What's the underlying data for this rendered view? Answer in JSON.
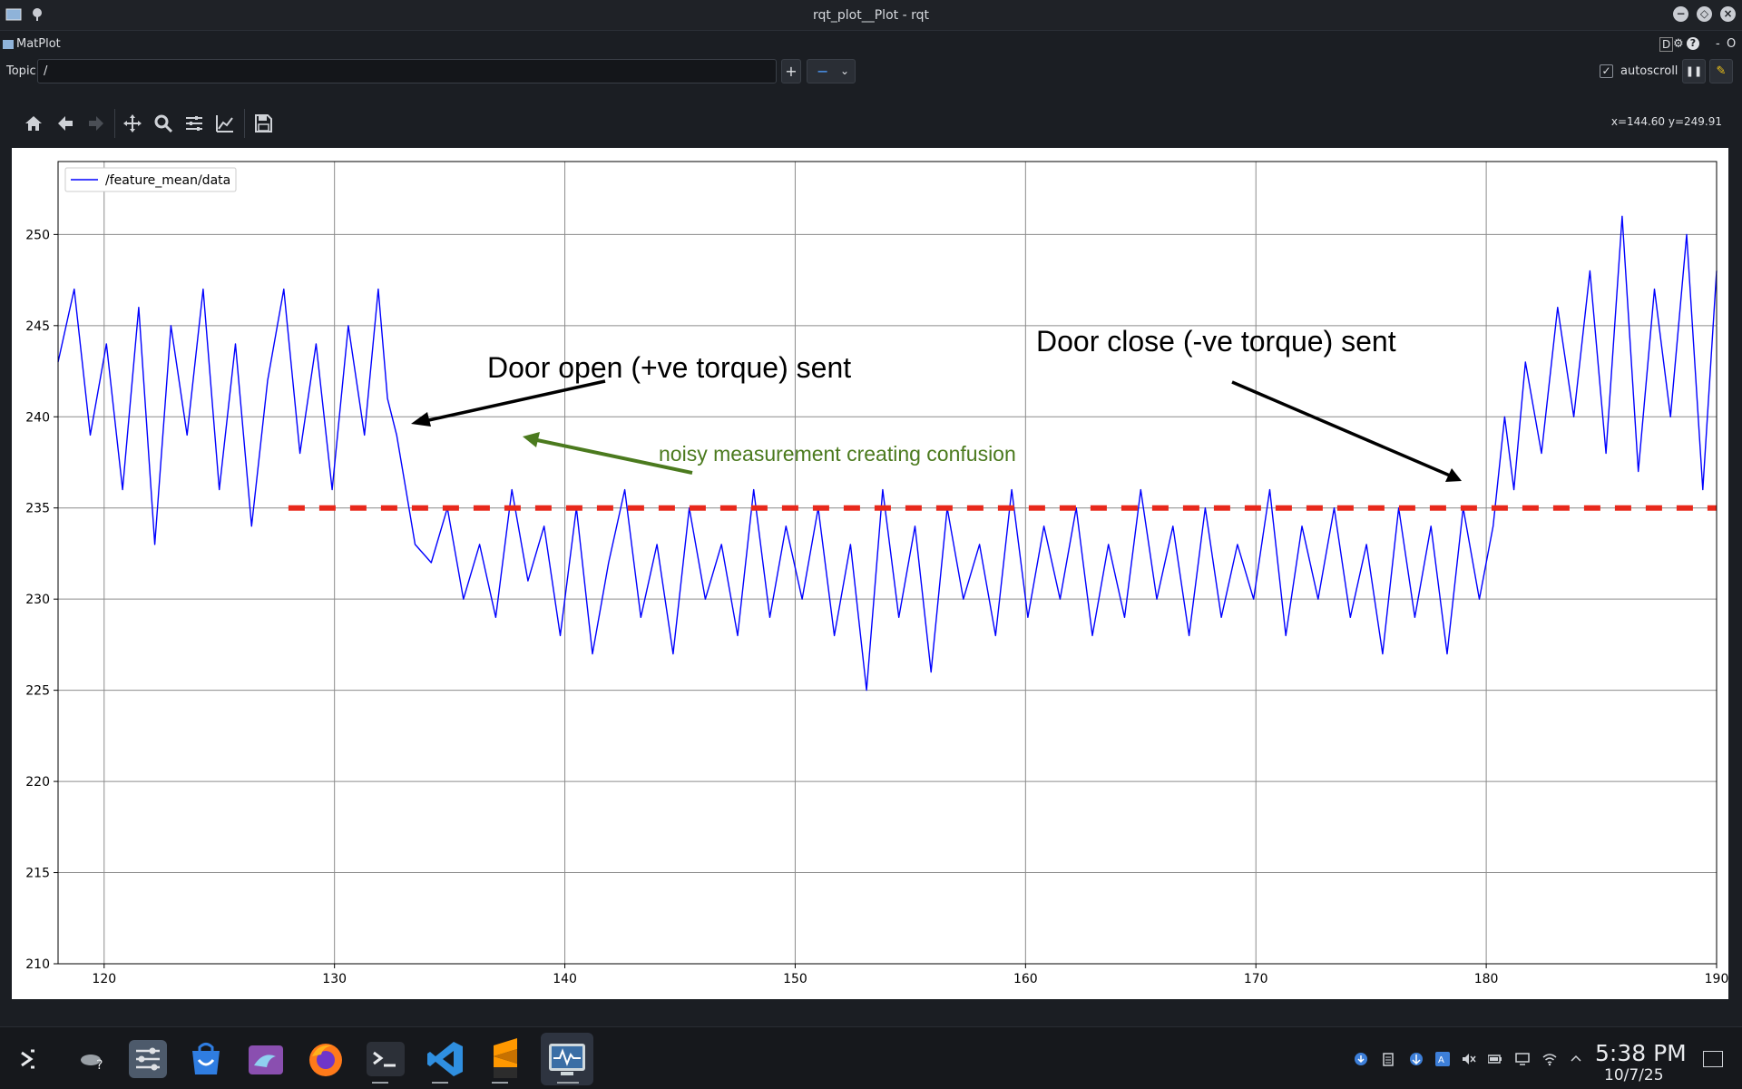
{
  "window": {
    "title": "rqt_plot__Plot - rqt",
    "plugin_name": "MatPlot",
    "plugin_tools": [
      "D",
      "gear",
      "help",
      "-",
      "O"
    ]
  },
  "topic_bar": {
    "label": "Topic",
    "value": "/",
    "add_label": "+",
    "remove_label": "−",
    "autoscroll_label": "autoscroll",
    "autoscroll_checked": true
  },
  "toolbar": {
    "tools": [
      "home-icon",
      "back-arrow-icon",
      "forward-arrow-icon",
      "pan-icon",
      "zoom-icon",
      "subplots-config-icon",
      "axes-edit-icon",
      "save-icon"
    ],
    "coordinates": "x=144.60 y=249.91"
  },
  "annotations": {
    "door_open": "Door open (+ve torque) sent",
    "door_close": "Door close (-ve torque) sent",
    "noisy": "noisy measurement creating confusion"
  },
  "chart_data": {
    "type": "line",
    "legend_position": "top-left",
    "grid": true,
    "xlim": [
      118,
      190
    ],
    "ylim": [
      210,
      254
    ],
    "x_ticks": [
      120,
      130,
      140,
      150,
      160,
      170,
      180,
      190
    ],
    "y_ticks": [
      210,
      215,
      220,
      225,
      230,
      235,
      240,
      245,
      250
    ],
    "series": [
      {
        "name": "/feature_mean/data",
        "color": "#0000ff",
        "x": [
          118,
          118.7,
          119.4,
          120.1,
          120.8,
          121.5,
          122.2,
          122.9,
          123.6,
          124.3,
          125,
          125.7,
          126.4,
          127.1,
          127.8,
          128.5,
          129.2,
          129.9,
          130.6,
          131.3,
          131.9,
          132.3,
          132.7,
          133.1,
          133.5,
          134.2,
          134.9,
          135.6,
          136.3,
          137,
          137.7,
          138.4,
          139.1,
          139.8,
          140.5,
          141.2,
          141.9,
          142.6,
          143.3,
          144,
          144.7,
          145.4,
          146.1,
          146.8,
          147.5,
          148.2,
          148.9,
          149.6,
          150.3,
          151,
          151.7,
          152.4,
          153.1,
          153.8,
          154.5,
          155.2,
          155.9,
          156.6,
          157.3,
          158,
          158.7,
          159.4,
          160.1,
          160.8,
          161.5,
          162.2,
          162.9,
          163.6,
          164.3,
          165,
          165.7,
          166.4,
          167.1,
          167.8,
          168.5,
          169.2,
          169.9,
          170.6,
          171.3,
          172,
          172.7,
          173.4,
          174.1,
          174.8,
          175.5,
          176.2,
          176.9,
          177.6,
          178.3,
          179,
          179.7,
          180.3,
          180.8,
          181.2,
          181.7,
          182.4,
          183.1,
          183.8,
          184.5,
          185.2,
          185.9,
          186.6,
          187.3,
          188,
          188.7,
          189.4,
          190
        ],
        "values": [
          243,
          247,
          239,
          244,
          236,
          246,
          233,
          245,
          239,
          247,
          236,
          244,
          234,
          242,
          247,
          238,
          244,
          236,
          245,
          239,
          247,
          241,
          239,
          236,
          233,
          232,
          235,
          230,
          233,
          229,
          236,
          231,
          234,
          228,
          235,
          227,
          232,
          236,
          229,
          233,
          227,
          235,
          230,
          233,
          228,
          236,
          229,
          234,
          230,
          235,
          228,
          233,
          225,
          236,
          229,
          234,
          226,
          235,
          230,
          233,
          228,
          236,
          229,
          234,
          230,
          235,
          228,
          233,
          229,
          236,
          230,
          234,
          228,
          235,
          229,
          233,
          230,
          236,
          228,
          234,
          230,
          235,
          229,
          233,
          227,
          235,
          229,
          234,
          227,
          235,
          230,
          234,
          240,
          236,
          243,
          238,
          246,
          240,
          248,
          238,
          251,
          237,
          247,
          240,
          250,
          236,
          248
        ]
      },
      {
        "name": "",
        "color": "#e8291c",
        "style": "dashed",
        "x": [
          128,
          190
        ],
        "values": [
          235,
          235
        ]
      }
    ]
  },
  "taskbar": {
    "apps": [
      "launcher-icon",
      "weather-icon",
      "system-settings-icon",
      "discover-store-icon",
      "dolphin-files-icon",
      "firefox-icon",
      "terminal-icon",
      "vscode-icon",
      "sublime-icon",
      "system-monitor-icon"
    ],
    "time": "5:38 PM",
    "date": "10/7/25"
  }
}
